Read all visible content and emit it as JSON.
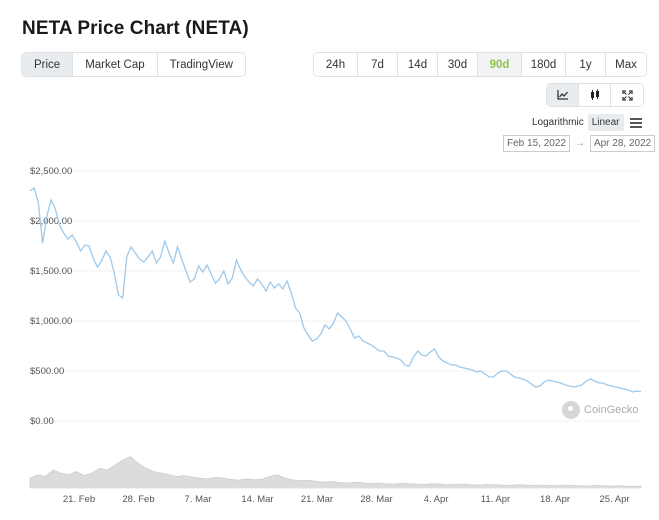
{
  "page": {
    "title": "NETA Price Chart (NETA)"
  },
  "view_tabs": [
    {
      "label": "Price",
      "active": true
    },
    {
      "label": "Market Cap",
      "active": false
    },
    {
      "label": "TradingView",
      "active": false
    }
  ],
  "range_tabs": [
    {
      "label": "24h",
      "active": false
    },
    {
      "label": "7d",
      "active": false
    },
    {
      "label": "14d",
      "active": false
    },
    {
      "label": "30d",
      "active": false
    },
    {
      "label": "90d",
      "active": true
    },
    {
      "label": "180d",
      "active": false
    },
    {
      "label": "1y",
      "active": false
    },
    {
      "label": "Max",
      "active": false
    }
  ],
  "chart_type_icons": [
    "line-chart-icon",
    "candlestick-icon",
    "fullscreen-icon"
  ],
  "scale": {
    "logarithmic": "Logarithmic",
    "linear": "Linear",
    "active": "Linear"
  },
  "date_range": {
    "from": "Feb 15, 2022",
    "separator": "→",
    "to": "Apr 28, 2022"
  },
  "watermark": "CoinGecko",
  "colors": {
    "accent": "#8dc647",
    "line": "#9ec9ea",
    "volume": "#dcdcdc"
  },
  "chart_data": {
    "type": "line",
    "y_ticks": [
      "$2,500.00",
      "$2,000.00",
      "$1,500.00",
      "$1,000.00",
      "$500.00",
      "$0.00"
    ],
    "y_tick_values": [
      2500,
      2000,
      1500,
      1000,
      500,
      0
    ],
    "ylim": [
      0,
      2500
    ],
    "x_ticks": [
      "21. Feb",
      "28. Feb",
      "7. Mar",
      "14. Mar",
      "21. Mar",
      "28. Mar",
      "4. Apr",
      "11. Apr",
      "18. Apr",
      "25. Apr"
    ],
    "series": [
      {
        "values": [
          2300,
          2330,
          2180,
          1780,
          2050,
          2210,
          2120,
          1960,
          1880,
          1820,
          1860,
          1790,
          1700,
          1760,
          1750,
          1630,
          1540,
          1600,
          1700,
          1640,
          1480,
          1260,
          1230,
          1650,
          1740,
          1680,
          1620,
          1590,
          1640,
          1700,
          1580,
          1640,
          1800,
          1680,
          1580,
          1740,
          1620,
          1500,
          1390,
          1420,
          1550,
          1490,
          1560,
          1470,
          1380,
          1420,
          1500,
          1370,
          1430,
          1610,
          1510,
          1440,
          1390,
          1350,
          1420,
          1370,
          1300,
          1390,
          1330,
          1370,
          1320,
          1400,
          1280,
          1130,
          1080,
          930,
          860,
          800,
          820,
          870,
          960,
          920,
          980,
          1080,
          1040,
          1000,
          920,
          830,
          850,
          800,
          780,
          760,
          730,
          700,
          700,
          650,
          640,
          630,
          610,
          560,
          550,
          640,
          700,
          660,
          650,
          690,
          720,
          640,
          600,
          580,
          560,
          560,
          540,
          530,
          520,
          510,
          490,
          500,
          470,
          440,
          440,
          480,
          500,
          500,
          470,
          440,
          430,
          420,
          400,
          370,
          340,
          350,
          390,
          410,
          400,
          390,
          380,
          360,
          350,
          340,
          350,
          360,
          400,
          420,
          400,
          380,
          380,
          360,
          350,
          340,
          330,
          320,
          310,
          290,
          300,
          295
        ]
      }
    ],
    "volume_note": "volume bars shown under price line",
    "volume": [
      30,
      40,
      35,
      55,
      45,
      40,
      50,
      38,
      45,
      60,
      55,
      70,
      85,
      95,
      75,
      60,
      50,
      45,
      40,
      35,
      38,
      33,
      30,
      28,
      32,
      30,
      26,
      24,
      28,
      25,
      27,
      35,
      40,
      30,
      25,
      22,
      24,
      20,
      18,
      20,
      17,
      15,
      18,
      16,
      14,
      15,
      13,
      12,
      14,
      13,
      12,
      11,
      13,
      12,
      10,
      11,
      12,
      10,
      9,
      11,
      10,
      9,
      8,
      10,
      9,
      8,
      9,
      8,
      7,
      9,
      8,
      7,
      6,
      8,
      7,
      6,
      7,
      6,
      5,
      6
    ]
  }
}
